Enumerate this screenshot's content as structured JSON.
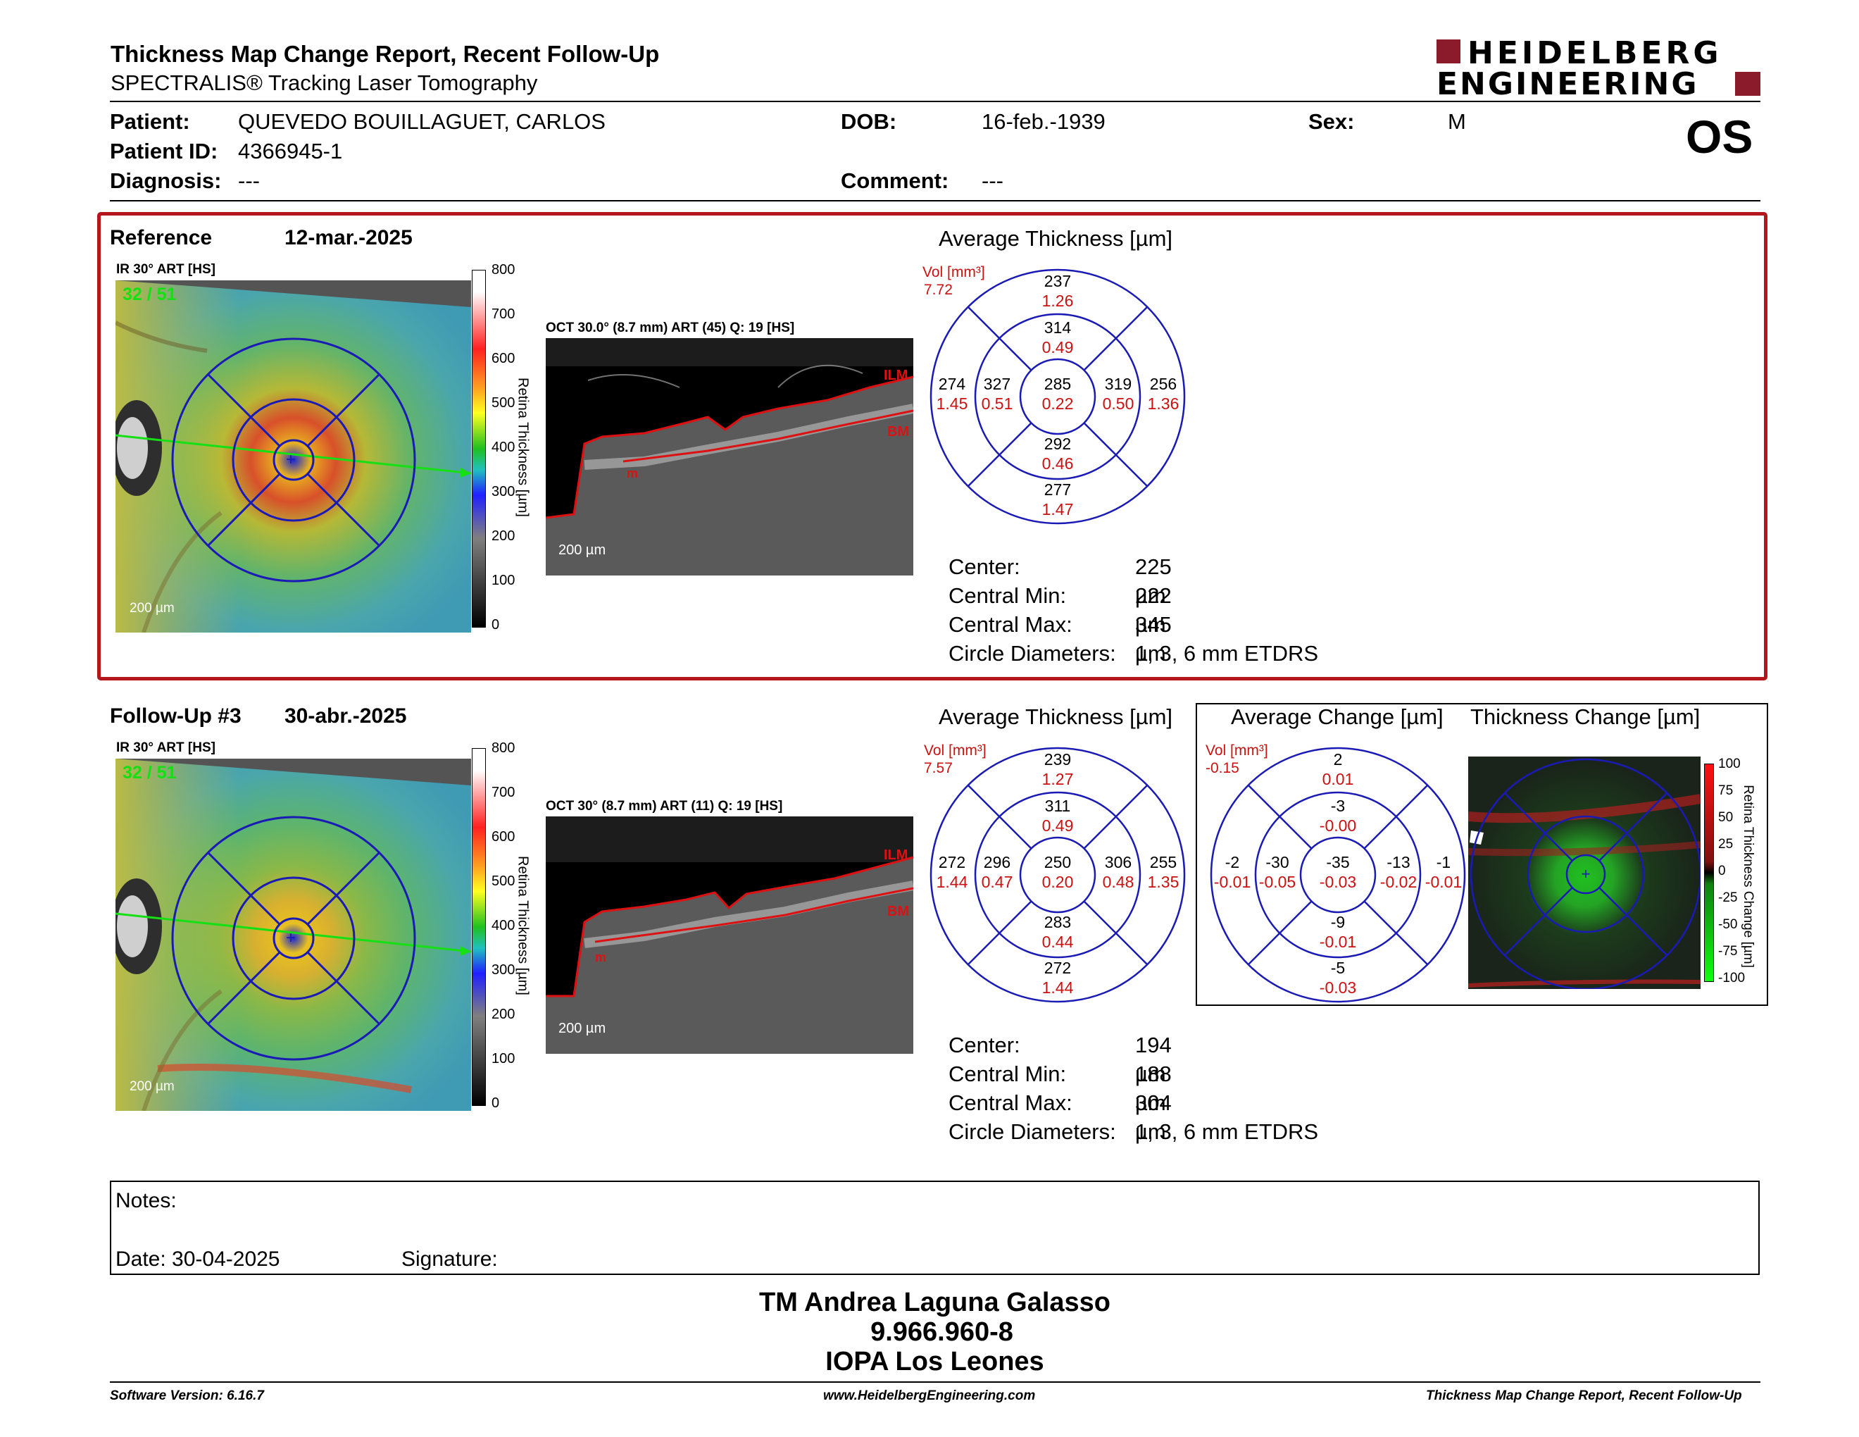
{
  "header": {
    "title": "Thickness Map Change Report, Recent Follow-Up",
    "subtitle": "SPECTRALIS® Tracking Laser Tomography",
    "logo_line1": "HEIDELBERG",
    "logo_line2": "ENGINEERING",
    "eye": "OS"
  },
  "patient": {
    "patient_label": "Patient:",
    "patient_value": "QUEVEDO BOUILLAGUET, CARLOS",
    "id_label": "Patient ID:",
    "id_value": "4366945-1",
    "diagnosis_label": "Diagnosis:",
    "diagnosis_value": "---",
    "dob_label": "DOB:",
    "dob_value": "16-feb.-1939",
    "comment_label": "Comment:",
    "comment_value": "---",
    "sex_label": "Sex:",
    "sex_value": "M"
  },
  "reference": {
    "heading": "Reference",
    "date": "12-mar.-2025",
    "ir_label": "IR 30° ART [HS]",
    "ir_counter": "32 / 51",
    "scale_label": "200 µm",
    "colorbar_ticks": [
      "800",
      "700",
      "600",
      "500",
      "400",
      "300",
      "200",
      "100",
      "0"
    ],
    "colorbar_title": "Retina Thickness [µm]",
    "oct_label": "OCT 30.0° (8.7 mm) ART (45) Q: 19 [HS]",
    "oct_scale": "200 µm",
    "ilm": "ILM",
    "bm": "BM",
    "m": "m",
    "avg_title": "Average Thickness [µm]",
    "vol_label": "Vol [mm³]",
    "vol_value": "7.72",
    "sectors": {
      "outer_top": [
        "237",
        "1.26"
      ],
      "inner_top": [
        "314",
        "0.49"
      ],
      "outer_left": [
        "274",
        "1.45"
      ],
      "inner_left": [
        "327",
        "0.51"
      ],
      "center": [
        "285",
        "0.22"
      ],
      "inner_right": [
        "319",
        "0.50"
      ],
      "outer_right": [
        "256",
        "1.36"
      ],
      "inner_bottom": [
        "292",
        "0.46"
      ],
      "outer_bottom": [
        "277",
        "1.47"
      ]
    },
    "stats": [
      [
        "Center:",
        "225 µm"
      ],
      [
        "Central Min:",
        "222 µm"
      ],
      [
        "Central Max:",
        "345 µm"
      ],
      [
        "Circle Diameters:",
        "1, 3, 6 mm ETDRS"
      ]
    ]
  },
  "followup": {
    "heading": "Follow-Up #3",
    "date": "30-abr.-2025",
    "ir_label": "IR 30° ART [HS]",
    "ir_counter": "32 / 51",
    "scale_label": "200 µm",
    "colorbar_ticks": [
      "800",
      "700",
      "600",
      "500",
      "400",
      "300",
      "200",
      "100",
      "0"
    ],
    "colorbar_title": "Retina Thickness [µm]",
    "oct_label": "OCT 30° (8.7 mm) ART (11) Q: 19 [HS]",
    "oct_scale": "200 µm",
    "ilm": "ILM",
    "bm": "BM",
    "m": "m",
    "avg_title": "Average Thickness [µm]",
    "vol_label": "Vol [mm³]",
    "vol_value": "7.57",
    "sectors": {
      "outer_top": [
        "239",
        "1.27"
      ],
      "inner_top": [
        "311",
        "0.49"
      ],
      "outer_left": [
        "272",
        "1.44"
      ],
      "inner_left": [
        "296",
        "0.47"
      ],
      "center": [
        "250",
        "0.20"
      ],
      "inner_right": [
        "306",
        "0.48"
      ],
      "outer_right": [
        "255",
        "1.35"
      ],
      "inner_bottom": [
        "283",
        "0.44"
      ],
      "outer_bottom": [
        "272",
        "1.44"
      ]
    },
    "stats": [
      [
        "Center:",
        "194 µm"
      ],
      [
        "Central Min:",
        "188 µm"
      ],
      [
        "Central Max:",
        "304 µm"
      ],
      [
        "Circle Diameters:",
        "1, 3, 6 mm ETDRS"
      ]
    ],
    "change_title": "Average Change [µm]",
    "change_vol_label": "Vol [mm³]",
    "change_vol_value": "-0.15",
    "change_sectors": {
      "outer_top": [
        "2",
        "0.01"
      ],
      "inner_top": [
        "-3",
        "-0.00"
      ],
      "outer_left": [
        "-2",
        "-0.01"
      ],
      "inner_left": [
        "-30",
        "-0.05"
      ],
      "center": [
        "-35",
        "-0.03"
      ],
      "inner_right": [
        "-13",
        "-0.02"
      ],
      "outer_right": [
        "-1",
        "-0.01"
      ],
      "inner_bottom": [
        "-9",
        "-0.01"
      ],
      "outer_bottom": [
        "-5",
        "-0.03"
      ]
    },
    "thickness_change_title": "Thickness Change [µm]",
    "change_ticks": [
      "100",
      "75",
      "50",
      "25",
      "0",
      "-25",
      "-50",
      "-75",
      "-100"
    ],
    "change_colorbar_title": "Retina Thickness Change [µm]"
  },
  "notes": {
    "notes_label": "Notes:",
    "date_label": "Date: 30-04-2025",
    "signature_label": "Signature:"
  },
  "signatory": {
    "name": "TM Andrea Laguna Galasso",
    "rut": "9.966.960-8",
    "org": "IOPA Los Leones"
  },
  "footer": {
    "software": "Software Version: 6.16.7",
    "website": "www.HeidelbergEngineering.com",
    "report": "Thickness Map Change Report, Recent Follow-Up"
  },
  "colors": {
    "accent_red": "#b4161b",
    "grid_blue": "#1a1ab4",
    "value_red": "#cc1111"
  }
}
